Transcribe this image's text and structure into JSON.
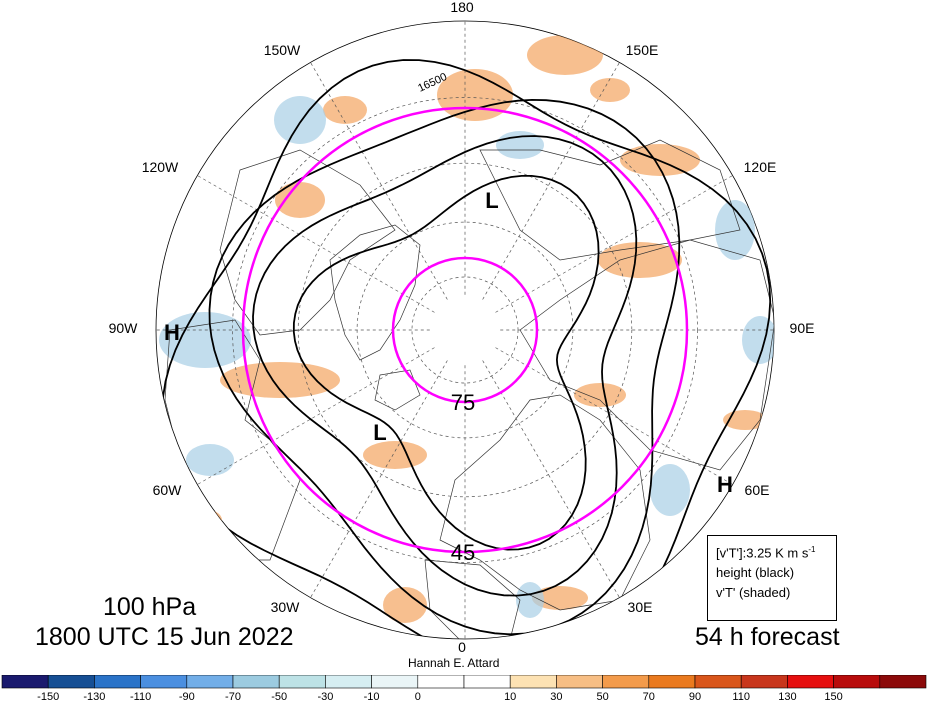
{
  "map": {
    "longitude_labels": [
      {
        "text": "180",
        "lon": 180
      },
      {
        "text": "150E",
        "lon": 150
      },
      {
        "text": "120E",
        "lon": 120
      },
      {
        "text": "90E",
        "lon": 90
      },
      {
        "text": "60E",
        "lon": 60
      },
      {
        "text": "30E",
        "lon": 30
      },
      {
        "text": "0",
        "lon": 0
      },
      {
        "text": "30W",
        "lon": -30
      },
      {
        "text": "60W",
        "lon": -60
      },
      {
        "text": "90W",
        "lon": -90
      },
      {
        "text": "120W",
        "lon": -120
      },
      {
        "text": "150W",
        "lon": -150
      }
    ],
    "latitude_labels": [
      {
        "text": "75",
        "lat": 75
      },
      {
        "text": "45",
        "lat": 45
      }
    ],
    "contour_label": "16500",
    "pressure_centers": [
      {
        "text": "H",
        "kind": "high"
      },
      {
        "text": "H",
        "kind": "high"
      },
      {
        "text": "L",
        "kind": "low"
      },
      {
        "text": "L",
        "kind": "low"
      }
    ],
    "colors": {
      "highlight_circles": "#ff00ff",
      "height_contours": "#000000",
      "warm_shading": "#f4a460",
      "cold_shading": "#a8cfe6"
    }
  },
  "header": {
    "level": "100 hPa",
    "valid_time": "1800 UTC 15 Jun 2022",
    "forecast": "54 h forecast",
    "author": "Hannah E. Attard"
  },
  "legend_box": {
    "line1_main": "[v'T']:3.25 K m s",
    "line1_exp": "-1",
    "line2": "height (black)",
    "line3": "v'T' (shaded)"
  },
  "colorbar": {
    "ticks": [
      "-150",
      "-130",
      "-110",
      "-90",
      "-70",
      "-50",
      "-30",
      "-10",
      "0",
      "10",
      "30",
      "50",
      "70",
      "90",
      "110",
      "130",
      "150"
    ],
    "colors": [
      "#1a1a6e",
      "#164f94",
      "#2a73c8",
      "#4b8fe0",
      "#72aee8",
      "#9ccbe0",
      "#bde2e6",
      "#d6eef2",
      "#eaf5f7",
      "#ffffff",
      "#ffffff",
      "#fde2b3",
      "#f7be84",
      "#f39b4b",
      "#ea7a1f",
      "#d9561b",
      "#c8361c",
      "#e60f0f",
      "#b80c0c",
      "#8c0a0a"
    ]
  }
}
